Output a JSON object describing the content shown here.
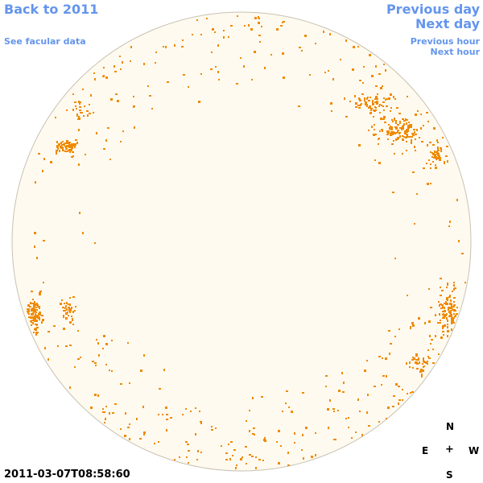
{
  "nav": {
    "back_label": "Back to 2011",
    "facular_label": "See facular data",
    "prev_day_label": "Previous day",
    "next_day_label": "Next day",
    "prev_hour_label": "Previous hour",
    "next_hour_label": "Next hour"
  },
  "compass": {
    "north": "N",
    "east": "E",
    "center": "+",
    "west": "W",
    "south": "S"
  },
  "timestamp": "2011-03-07T08:58:60",
  "colors": {
    "disk_fill": "#fffaef",
    "disk_stroke": "#c9c2b3",
    "plage": "#ef8a00",
    "link": "#6495ed"
  },
  "icons": {
    "sun_disk": "solar-disk-icon"
  }
}
